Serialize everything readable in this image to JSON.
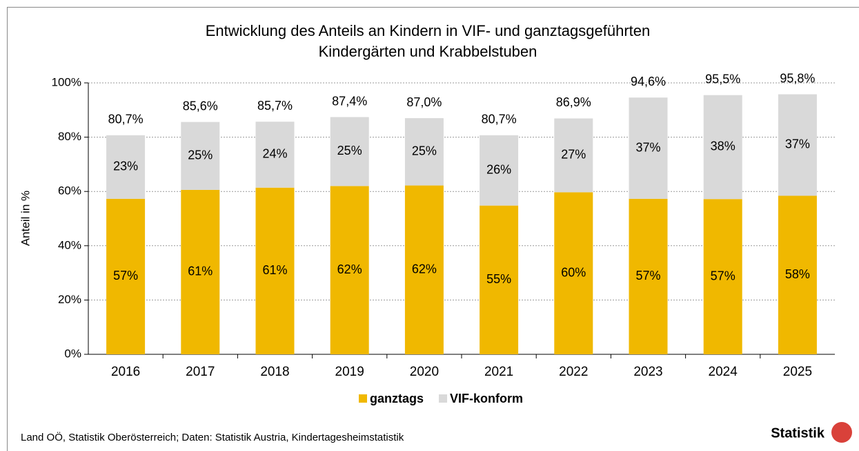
{
  "chart_data": {
    "type": "stacked_bar",
    "title": "Entwicklung des Anteils an Kindern in VIF- und ganztagsgeführten",
    "subtitle": "Kindergärten und Krabbelstuben",
    "y_label": "Anteil in %",
    "categories": [
      "2016",
      "2017",
      "2018",
      "2019",
      "2020",
      "2021",
      "2022",
      "2023",
      "2024",
      "2025"
    ],
    "series": [
      {
        "name": "ganztags",
        "color": "#f0b800",
        "values": [
          57.3,
          60.6,
          61.4,
          62.0,
          62.2,
          54.8,
          59.7,
          57.3,
          57.2,
          58.4
        ],
        "value_labels": [
          "57%",
          "61%",
          "61%",
          "62%",
          "62%",
          "55%",
          "60%",
          "57%",
          "57%",
          "58%"
        ]
      },
      {
        "name": "VIF-konform",
        "color": "#d9d9d9",
        "values": [
          23.4,
          25.0,
          24.3,
          25.4,
          24.8,
          25.9,
          27.2,
          37.3,
          38.3,
          37.4
        ],
        "value_labels": [
          "23%",
          "25%",
          "24%",
          "25%",
          "25%",
          "26%",
          "27%",
          "37%",
          "38%",
          "37%"
        ]
      }
    ],
    "total_labels": [
      "80,7%",
      "85,6%",
      "85,7%",
      "87,4%",
      "87,0%",
      "80,7%",
      "86,9%",
      "94,6%",
      "95,5%",
      "95,8%"
    ],
    "ylim": [
      0,
      100
    ],
    "yticks": [
      {
        "value": 0,
        "label": "0%"
      },
      {
        "value": 20,
        "label": "20%"
      },
      {
        "value": 40,
        "label": "40%"
      },
      {
        "value": 60,
        "label": "60%"
      },
      {
        "value": 80,
        "label": "80%"
      },
      {
        "value": 100,
        "label": "100%"
      }
    ],
    "grid": true,
    "legend": "bottom",
    "source": "Land OÖ, Statistik Oberösterreich; Daten: Statistik Austria, Kindertagesheimstatistik",
    "logo": "Statistik"
  }
}
